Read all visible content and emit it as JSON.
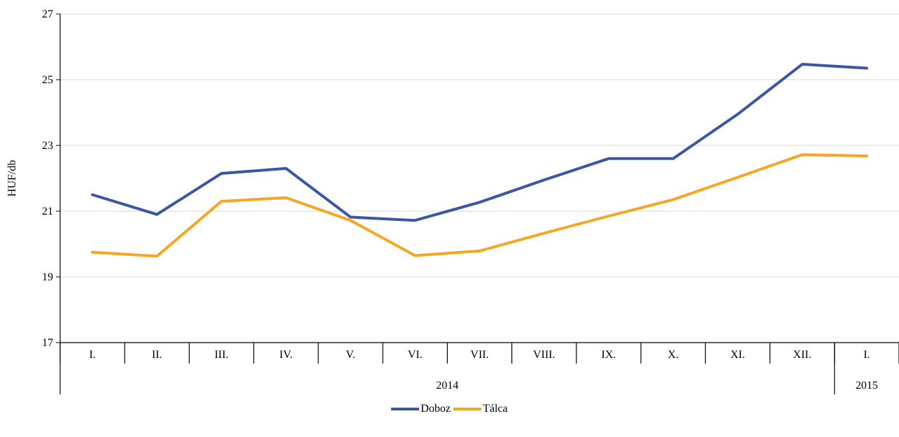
{
  "chart_data": {
    "type": "line",
    "ylabel": "HUF/db",
    "xlabel": "",
    "ylim": [
      17,
      27
    ],
    "yticks": [
      17,
      19,
      21,
      23,
      25,
      27
    ],
    "grid": true,
    "legend_position": "bottom-center",
    "categories": [
      "I.",
      "II.",
      "III.",
      "IV.",
      "V.",
      "VI.",
      "VII.",
      "VIII.",
      "IX.",
      "X.",
      "XI.",
      "XII.",
      "I."
    ],
    "year_groups": [
      {
        "label": "2014",
        "count": 12
      },
      {
        "label": "2015",
        "count": 1
      }
    ],
    "series": [
      {
        "name": "Doboz",
        "color": "#3A56A5",
        "values": [
          21.5,
          20.9,
          22.15,
          22.3,
          20.82,
          20.72,
          21.27,
          21.95,
          22.6,
          22.6,
          23.95,
          25.47,
          25.35
        ]
      },
      {
        "name": "Tálca",
        "color": "#F5A623",
        "values": [
          19.75,
          19.63,
          21.3,
          21.41,
          20.72,
          19.65,
          19.79,
          20.33,
          20.85,
          21.35,
          22.03,
          22.72,
          22.68
        ]
      }
    ]
  }
}
